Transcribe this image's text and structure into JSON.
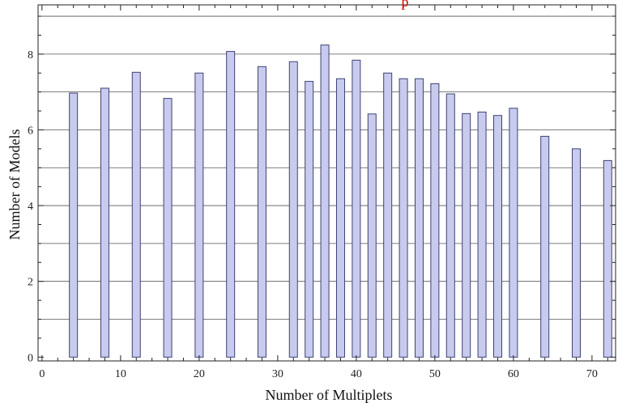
{
  "chart_data": {
    "type": "bar",
    "title": "",
    "title_fragment": "p",
    "xlabel": "Number of Multiplets",
    "ylabel": "Number of Models",
    "x": [
      4,
      8,
      12,
      16,
      20,
      24,
      28,
      32,
      34,
      36,
      38,
      40,
      42,
      44,
      46,
      48,
      50,
      52,
      54,
      56,
      58,
      60,
      64,
      68,
      72
    ],
    "values": [
      6.97,
      7.1,
      7.52,
      6.83,
      7.5,
      8.07,
      7.67,
      7.8,
      7.28,
      8.24,
      7.35,
      7.84,
      6.42,
      7.5,
      7.35,
      7.35,
      7.22,
      6.95,
      6.43,
      6.47,
      6.38,
      6.57,
      5.83,
      5.5,
      5.19
    ],
    "xlim": [
      -0.5,
      73
    ],
    "ylim": [
      -0.1,
      9.3
    ],
    "xticks": [
      0,
      10,
      20,
      30,
      40,
      50,
      60,
      70
    ],
    "yticks": [
      0,
      2,
      4,
      6,
      8
    ],
    "grid": "horizontal",
    "colors": {
      "bar_fill": "#c8cbed",
      "bar_edge": "#3d4373",
      "title": "#d40000",
      "grid": "#555555"
    }
  }
}
